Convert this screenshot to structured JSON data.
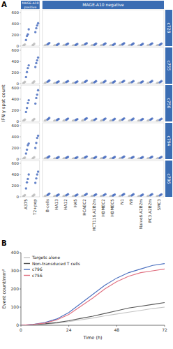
{
  "chart_data": [
    {
      "type": "scatter",
      "panel_label": "A",
      "title": "c728",
      "groups": [
        {
          "label": "MAGE-A10 positive",
          "size": 2
        },
        {
          "label": "MAGE-A10 negative",
          "size": 13
        }
      ],
      "categories": [
        "A375",
        "T2+pep",
        "B-cells",
        "HA13",
        "HA12",
        "HA5",
        "HCAEC2",
        "HCT116.A2B2m",
        "HDMEC2",
        "HDMEC5",
        "N1",
        "N9",
        "Naive6.A2B2m",
        "PC3.A2B2m",
        "SMC3"
      ],
      "ylim": [
        0,
        650
      ],
      "yticks": [
        0,
        200,
        400,
        600
      ],
      "tick_labels": "y",
      "series": [
        {
          "color": "#4a6fbf",
          "values": [
            [
              110,
              180,
              210,
              300
            ],
            [
              250,
              320,
              370,
              410
            ],
            [
              30,
              40,
              55
            ],
            [
              20,
              30,
              40
            ],
            [
              25,
              35,
              45
            ],
            [
              20,
              28,
              38
            ],
            [
              30,
              42,
              50
            ],
            [
              22,
              32,
              44
            ],
            [
              25,
              35,
              48
            ],
            [
              20,
              30,
              42
            ],
            [
              28,
              38,
              50
            ],
            [
              24,
              34,
              46
            ],
            [
              20,
              30,
              40
            ],
            [
              26,
              36,
              48
            ],
            [
              22,
              32,
              45
            ]
          ]
        },
        {
          "color": "#bdbdbd",
          "values": [
            [
              10,
              20,
              30
            ],
            [
              15,
              25,
              40
            ],
            [
              10,
              20
            ],
            [
              8,
              15
            ],
            [
              10,
              18
            ],
            [
              8,
              14
            ],
            [
              12,
              20
            ],
            [
              10,
              16
            ],
            [
              9,
              17
            ],
            [
              8,
              15
            ],
            [
              10,
              20
            ],
            [
              10,
              18
            ],
            [
              8,
              14
            ],
            [
              10,
              18
            ],
            [
              9,
              16
            ]
          ]
        }
      ]
    },
    {
      "type": "scatter",
      "title": "c755",
      "categories": [
        "A375",
        "T2+pep",
        "B-cells",
        "HA13",
        "HA12",
        "HA5",
        "HCAEC2",
        "HCT116.A2B2m",
        "HDMEC2",
        "HDMEC5",
        "N1",
        "N9",
        "Naive6.A2B2m",
        "PC3.A2B2m",
        "SMC3"
      ],
      "ylim": [
        0,
        650
      ],
      "yticks": [
        0,
        200,
        400,
        600
      ],
      "tick_labels": "y",
      "series": [
        {
          "color": "#4a6fbf",
          "values": [
            [
              120,
              210,
              280,
              330
            ],
            [
              300,
              370,
              420,
              470
            ],
            [
              35,
              45,
              60
            ],
            [
              22,
              32,
              42
            ],
            [
              28,
              38,
              48
            ],
            [
              22,
              30,
              40
            ],
            [
              32,
              44,
              55
            ],
            [
              24,
              34,
              46
            ],
            [
              26,
              38,
              50
            ],
            [
              22,
              32,
              44
            ],
            [
              30,
              40,
              52
            ],
            [
              26,
              36,
              48
            ],
            [
              22,
              32,
              42
            ],
            [
              28,
              38,
              50
            ],
            [
              24,
              34,
              46
            ]
          ]
        },
        {
          "color": "#bdbdbd",
          "values": [
            [
              12,
              22,
              35
            ],
            [
              15,
              28,
              40
            ],
            [
              10,
              22
            ],
            [
              8,
              16
            ],
            [
              10,
              20
            ],
            [
              8,
              15
            ],
            [
              12,
              22
            ],
            [
              10,
              18
            ],
            [
              9,
              18
            ],
            [
              8,
              16
            ],
            [
              10,
              22
            ],
            [
              10,
              20
            ],
            [
              8,
              15
            ],
            [
              10,
              20
            ],
            [
              9,
              18
            ]
          ]
        }
      ]
    },
    {
      "type": "scatter",
      "title": "c756",
      "y_label": "IFN γ spot count",
      "categories": [
        "A375",
        "T2+pep",
        "B-cells",
        "HA13",
        "HA12",
        "HA5",
        "HCAEC2",
        "HCT116.A2B2m",
        "HDMEC2",
        "HDMEC5",
        "N1",
        "N9",
        "Naive6.A2B2m",
        "PC3.A2B2m",
        "SMC3"
      ],
      "ylim": [
        0,
        650
      ],
      "yticks": [
        0,
        200,
        400,
        600
      ],
      "tick_labels": "y",
      "series": [
        {
          "color": "#4a6fbf",
          "values": [
            [
              170,
              240,
              330,
              380
            ],
            [
              320,
              420,
              480,
              560
            ],
            [
              35,
              48,
              62
            ],
            [
              24,
              34,
              45
            ],
            [
              28,
              40,
              52
            ],
            [
              24,
              32,
              42
            ],
            [
              34,
              46,
              58
            ],
            [
              26,
              36,
              48
            ],
            [
              28,
              40,
              52
            ],
            [
              24,
              34,
              46
            ],
            [
              32,
              42,
              55
            ],
            [
              28,
              38,
              50
            ],
            [
              24,
              34,
              44
            ],
            [
              30,
              40,
              52
            ],
            [
              26,
              36,
              48
            ]
          ]
        },
        {
          "color": "#bdbdbd",
          "values": [
            [
              12,
              24,
              35
            ],
            [
              18,
              30,
              45
            ],
            [
              12,
              22
            ],
            [
              9,
              16
            ],
            [
              10,
              20
            ],
            [
              9,
              15
            ],
            [
              12,
              22
            ],
            [
              10,
              18
            ],
            [
              10,
              18
            ],
            [
              9,
              16
            ],
            [
              12,
              22
            ],
            [
              10,
              20
            ],
            [
              9,
              15
            ],
            [
              10,
              20
            ],
            [
              10,
              18
            ]
          ]
        }
      ]
    },
    {
      "type": "scatter",
      "title": "c794",
      "categories": [
        "A375",
        "T2+pep",
        "B-cells",
        "HA13",
        "HA12",
        "HA5",
        "HCAEC2",
        "HCT116.A2B2m",
        "HDMEC2",
        "HDMEC5",
        "N1",
        "N9",
        "Naive6.A2B2m",
        "PC3.A2B2m",
        "SMC3"
      ],
      "ylim": [
        0,
        650
      ],
      "yticks": [
        0,
        200,
        400,
        600
      ],
      "tick_labels": "y",
      "series": [
        {
          "color": "#4a6fbf",
          "values": [
            [
              100,
              170,
              250,
              280
            ],
            [
              200,
              290,
              380,
              420
            ],
            [
              28,
              38,
              50
            ],
            [
              18,
              28,
              38
            ],
            [
              22,
              32,
              42
            ],
            [
              18,
              26,
              36
            ],
            [
              28,
              38,
              48
            ],
            [
              20,
              30,
              40
            ],
            [
              22,
              32,
              44
            ],
            [
              18,
              28,
              40
            ],
            [
              26,
              36,
              46
            ],
            [
              22,
              32,
              42
            ],
            [
              18,
              28,
              38
            ],
            [
              24,
              34,
              44
            ],
            [
              20,
              30,
              42
            ]
          ]
        },
        {
          "color": "#bdbdbd",
          "values": [
            [
              10,
              18,
              28
            ],
            [
              14,
              24,
              36
            ],
            [
              10,
              18
            ],
            [
              8,
              14
            ],
            [
              9,
              16
            ],
            [
              8,
              13
            ],
            [
              10,
              18
            ],
            [
              9,
              15
            ],
            [
              9,
              16
            ],
            [
              8,
              14
            ],
            [
              10,
              18
            ],
            [
              9,
              16
            ],
            [
              8,
              13
            ],
            [
              9,
              16
            ],
            [
              8,
              15
            ]
          ]
        }
      ]
    },
    {
      "type": "scatter",
      "title": "c796",
      "categories": [
        "A375",
        "T2+pep",
        "B-cells",
        "HA13",
        "HA12",
        "HA5",
        "HCAEC2",
        "HCT116.A2B2m",
        "HDMEC2",
        "HDMEC5",
        "N1",
        "N9",
        "Naive6.A2B2m",
        "PC3.A2B2m",
        "SMC3"
      ],
      "ylim": [
        0,
        650
      ],
      "yticks": [
        0,
        200,
        400,
        600
      ],
      "series": [
        {
          "color": "#4a6fbf",
          "values": [
            [
              150,
              260,
              320,
              400
            ],
            [
              250,
              330,
              400,
              450
            ],
            [
              32,
              44,
              58
            ],
            [
              22,
              32,
              42
            ],
            [
              26,
              36,
              48
            ],
            [
              22,
              30,
              40
            ],
            [
              30,
              42,
              54
            ],
            [
              24,
              34,
              44
            ],
            [
              26,
              36,
              48
            ],
            [
              22,
              32,
              42
            ],
            [
              28,
              40,
              50
            ],
            [
              24,
              34,
              46
            ],
            [
              22,
              30,
              40
            ],
            [
              26,
              38,
              48
            ],
            [
              24,
              34,
              44
            ]
          ]
        },
        {
          "color": "#bdbdbd",
          "values": [
            [
              10,
              20,
              32
            ],
            [
              15,
              26,
              38
            ],
            [
              10,
              20
            ],
            [
              8,
              15
            ],
            [
              10,
              18
            ],
            [
              8,
              14
            ],
            [
              11,
              20
            ],
            [
              10,
              16
            ],
            [
              9,
              17
            ],
            [
              8,
              15
            ],
            [
              10,
              20
            ],
            [
              10,
              18
            ],
            [
              8,
              14
            ],
            [
              10,
              18
            ],
            [
              9,
              16
            ]
          ]
        }
      ]
    },
    {
      "type": "line",
      "panel_label": "B",
      "x": [
        0,
        6,
        12,
        18,
        24,
        30,
        36,
        42,
        48,
        54,
        60,
        66,
        72
      ],
      "xlim": [
        0,
        72
      ],
      "xticks": [
        0,
        24,
        48,
        72
      ],
      "ylim": [
        0,
        400
      ],
      "yticks": [
        0,
        100,
        200,
        300,
        400
      ],
      "x_label": "Time (h)",
      "y_label": "Event count/mm²",
      "legend": "upper left",
      "series": [
        {
          "name": "Targets alone",
          "color": "#c4c4c4",
          "values": [
            0,
            2,
            6,
            12,
            20,
            30,
            40,
            52,
            62,
            72,
            82,
            92,
            100
          ]
        },
        {
          "name": "Non-transduced T cells",
          "color": "#555555",
          "values": [
            0,
            3,
            8,
            15,
            25,
            38,
            50,
            65,
            80,
            95,
            105,
            115,
            125
          ]
        },
        {
          "name": "c796",
          "color": "#4a6fbf",
          "values": [
            0,
            5,
            15,
            35,
            70,
            120,
            170,
            220,
            260,
            290,
            310,
            330,
            340
          ]
        },
        {
          "name": "c756",
          "color": "#e07080",
          "values": [
            0,
            5,
            12,
            30,
            60,
            105,
            150,
            200,
            240,
            270,
            290,
            300,
            310
          ]
        }
      ]
    }
  ]
}
